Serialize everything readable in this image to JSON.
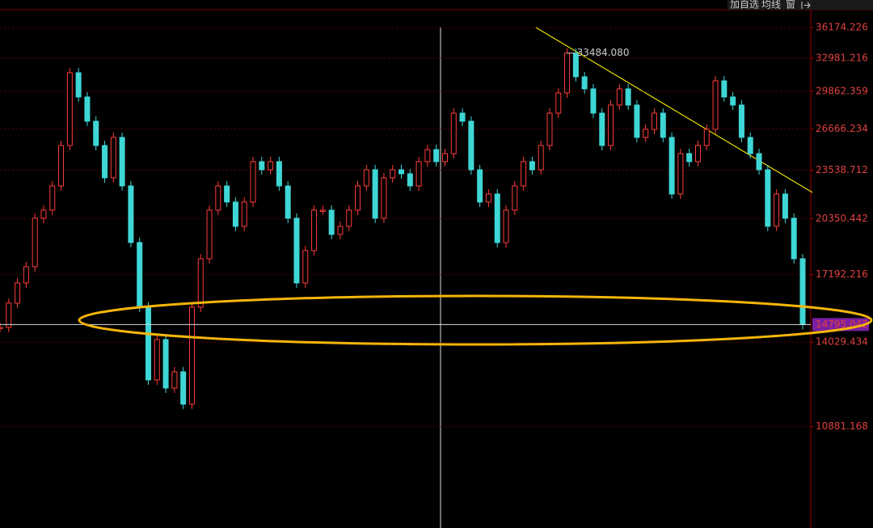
{
  "chart_data": {
    "type": "candlestick",
    "values": [
      14668,
      15780,
      16767,
      17606,
      20373,
      20873,
      22453,
      25358,
      31566,
      29345,
      27279,
      25358,
      23007,
      25984,
      22453,
      18936,
      15587,
      12523,
      14140,
      12220,
      12831,
      11641,
      15587,
      18036,
      20873,
      22453,
      21390,
      19882,
      21390,
      24154,
      23574,
      24154,
      22453,
      20373,
      16767,
      18485,
      20873,
      20873,
      19404,
      19882,
      20873,
      22453,
      23574,
      20373,
      23007,
      23574,
      23289,
      22453,
      24154,
      25051,
      24154,
      24747,
      27952,
      27279,
      23574,
      21390,
      21914,
      18936,
      20873,
      22453,
      24154,
      23574,
      25358,
      27952,
      29702,
      33484.08,
      31186,
      30068,
      27952,
      25358,
      28639,
      30068,
      28639,
      25984,
      26621,
      27952,
      25984,
      21914,
      24747,
      24154,
      25358,
      26621,
      30806,
      29345,
      28639,
      25984,
      24747,
      23574,
      19882,
      21914,
      20373,
      18036,
      14795.042
    ],
    "up_color": "#ff3b3b",
    "down_color": "#3fd6d6",
    "ylim": [
      8020,
      38160
    ],
    "log_scale": true,
    "grid": true,
    "yticks": [
      36174.226,
      32981.216,
      29862.359,
      26666.234,
      23538.712,
      20350.442,
      17192.216,
      14029.434,
      10881.168
    ],
    "high_annotation": {
      "value": 33484.08,
      "label": "33484.080"
    },
    "last_price": 14795.042
  },
  "toolbar": {
    "buttons": [
      "加自选",
      "均线",
      "窗"
    ]
  }
}
